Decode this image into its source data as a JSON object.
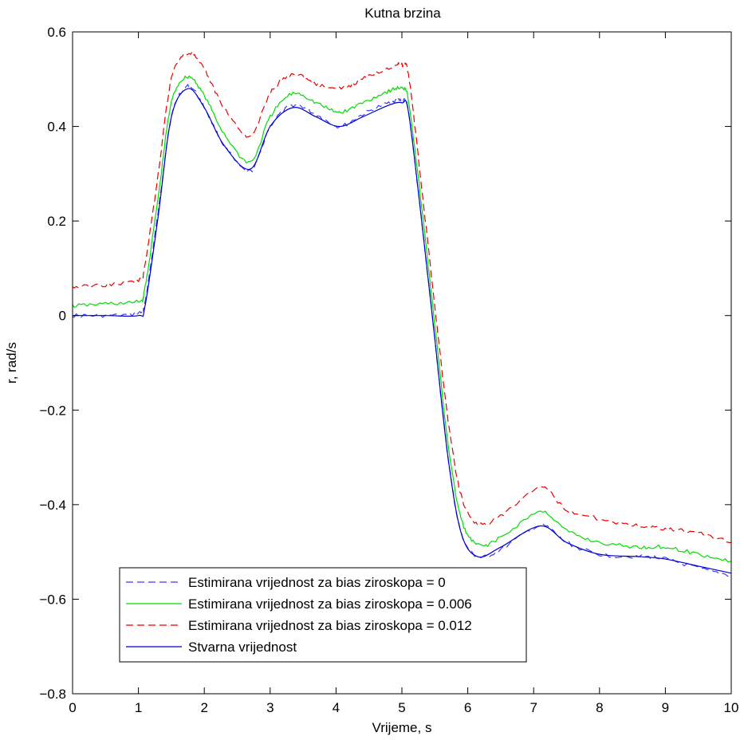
{
  "chart_data": {
    "type": "line",
    "title": "Kutna brzina",
    "xlabel": "Vrijeme, s",
    "ylabel": "r, rad/s",
    "xlim": [
      0,
      10
    ],
    "ylim": [
      -0.8,
      0.6
    ],
    "xticks": [
      0,
      1,
      2,
      3,
      4,
      5,
      6,
      7,
      8,
      9,
      10
    ],
    "yticks": [
      -0.8,
      -0.6,
      -0.4,
      -0.2,
      0,
      0.2,
      0.4,
      0.6
    ],
    "xtick_labels": [
      "0",
      "1",
      "2",
      "3",
      "4",
      "5",
      "6",
      "7",
      "8",
      "9",
      "10"
    ],
    "ytick_labels": [
      "−0.8",
      "−0.6",
      "−0.4",
      "−0.2",
      "0",
      "0.2",
      "0.4",
      "0.6"
    ],
    "grid": false,
    "legend_position": "bottom-left",
    "series": [
      {
        "name": "Estimirana vrijednost za bias ziroskopa = 0",
        "color": "#3a3aff",
        "dash": "dashed",
        "x": [
          0,
          0.5,
          1.0,
          1.1,
          1.3,
          1.5,
          1.75,
          2.0,
          2.3,
          2.7,
          3.0,
          3.35,
          3.7,
          4.05,
          4.4,
          4.8,
          5.0,
          5.1,
          5.3,
          5.5,
          5.7,
          5.9,
          6.15,
          6.5,
          7.1,
          7.5,
          8.0,
          8.6,
          9.0,
          9.5,
          10.0
        ],
        "y": [
          0.0,
          0.0,
          0.005,
          0.03,
          0.22,
          0.42,
          0.485,
          0.44,
          0.36,
          0.305,
          0.4,
          0.445,
          0.425,
          0.4,
          0.425,
          0.45,
          0.455,
          0.43,
          0.2,
          -0.05,
          -0.3,
          -0.46,
          -0.51,
          -0.495,
          -0.445,
          -0.48,
          -0.505,
          -0.51,
          -0.515,
          -0.535,
          -0.55
        ]
      },
      {
        "name": "Estimirana vrijednost za bias ziroskopa = 0.006",
        "color": "#00dd00",
        "dash": "solid",
        "x": [
          0,
          0.5,
          1.0,
          1.1,
          1.3,
          1.5,
          1.75,
          2.0,
          2.3,
          2.7,
          3.0,
          3.35,
          3.7,
          4.05,
          4.4,
          4.8,
          5.0,
          5.1,
          5.3,
          5.5,
          5.7,
          5.9,
          6.15,
          6.5,
          7.1,
          7.5,
          8.0,
          8.6,
          9.0,
          9.5,
          10.0
        ],
        "y": [
          0.02,
          0.025,
          0.03,
          0.06,
          0.25,
          0.45,
          0.505,
          0.465,
          0.385,
          0.325,
          0.42,
          0.47,
          0.45,
          0.43,
          0.45,
          0.475,
          0.48,
          0.455,
          0.23,
          -0.02,
          -0.27,
          -0.43,
          -0.485,
          -0.47,
          -0.415,
          -0.455,
          -0.48,
          -0.49,
          -0.49,
          -0.505,
          -0.52
        ]
      },
      {
        "name": "Estimirana vrijednost za bias ziroskopa = 0.012",
        "color": "#e80000",
        "dash": "dashed",
        "x": [
          0,
          0.5,
          1.0,
          1.1,
          1.3,
          1.5,
          1.75,
          2.0,
          2.3,
          2.7,
          3.0,
          3.35,
          3.7,
          4.05,
          4.4,
          4.8,
          5.0,
          5.1,
          5.3,
          5.5,
          5.7,
          5.9,
          6.15,
          6.5,
          7.1,
          7.5,
          8.0,
          8.6,
          9.0,
          9.5,
          10.0
        ],
        "y": [
          0.06,
          0.065,
          0.075,
          0.11,
          0.3,
          0.5,
          0.555,
          0.52,
          0.44,
          0.38,
          0.47,
          0.51,
          0.49,
          0.48,
          0.5,
          0.525,
          0.53,
          0.51,
          0.27,
          0.02,
          -0.22,
          -0.38,
          -0.44,
          -0.425,
          -0.365,
          -0.41,
          -0.43,
          -0.445,
          -0.45,
          -0.46,
          -0.48
        ]
      },
      {
        "name": "Stvarna vrijednost",
        "color": "#0000cc",
        "dash": "solid",
        "x": [
          0,
          0.5,
          1.0,
          1.1,
          1.3,
          1.5,
          1.75,
          2.0,
          2.3,
          2.7,
          3.0,
          3.35,
          3.7,
          4.05,
          4.4,
          4.8,
          5.0,
          5.1,
          5.3,
          5.5,
          5.7,
          5.9,
          6.15,
          6.5,
          7.1,
          7.5,
          8.0,
          8.6,
          9.0,
          9.5,
          10.0
        ],
        "y": [
          0.0,
          0.0,
          0.0,
          0.02,
          0.21,
          0.42,
          0.48,
          0.44,
          0.36,
          0.31,
          0.4,
          0.44,
          0.42,
          0.4,
          0.42,
          0.445,
          0.45,
          0.43,
          0.2,
          -0.05,
          -0.3,
          -0.46,
          -0.51,
          -0.49,
          -0.445,
          -0.48,
          -0.505,
          -0.51,
          -0.515,
          -0.53,
          -0.545
        ]
      }
    ]
  }
}
